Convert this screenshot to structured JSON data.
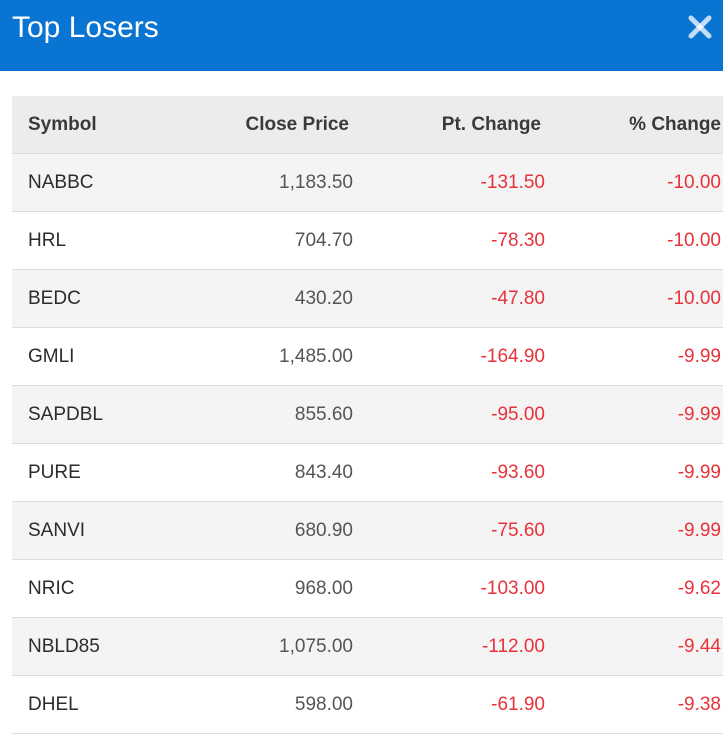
{
  "header": {
    "title": "Top Losers",
    "close_icon": "close-icon",
    "background": "#0a74d3"
  },
  "table": {
    "columns": [
      "Symbol",
      "Close Price",
      "Pt. Change",
      "% Change"
    ],
    "negative_color": "#e8323a",
    "rows": [
      {
        "symbol": "NABBC",
        "close": "1,183.50",
        "pt": "-131.50",
        "pct": "-10.00"
      },
      {
        "symbol": "HRL",
        "close": "704.70",
        "pt": "-78.30",
        "pct": "-10.00"
      },
      {
        "symbol": "BEDC",
        "close": "430.20",
        "pt": "-47.80",
        "pct": "-10.00"
      },
      {
        "symbol": "GMLI",
        "close": "1,485.00",
        "pt": "-164.90",
        "pct": "-9.99"
      },
      {
        "symbol": "SAPDBL",
        "close": "855.60",
        "pt": "-95.00",
        "pct": "-9.99"
      },
      {
        "symbol": "PURE",
        "close": "843.40",
        "pt": "-93.60",
        "pct": "-9.99"
      },
      {
        "symbol": "SANVI",
        "close": "680.90",
        "pt": "-75.60",
        "pct": "-9.99"
      },
      {
        "symbol": "NRIC",
        "close": "968.00",
        "pt": "-103.00",
        "pct": "-9.62"
      },
      {
        "symbol": "NBLD85",
        "close": "1,075.00",
        "pt": "-112.00",
        "pct": "-9.44"
      },
      {
        "symbol": "DHEL",
        "close": "598.00",
        "pt": "-61.90",
        "pct": "-9.38"
      }
    ]
  }
}
